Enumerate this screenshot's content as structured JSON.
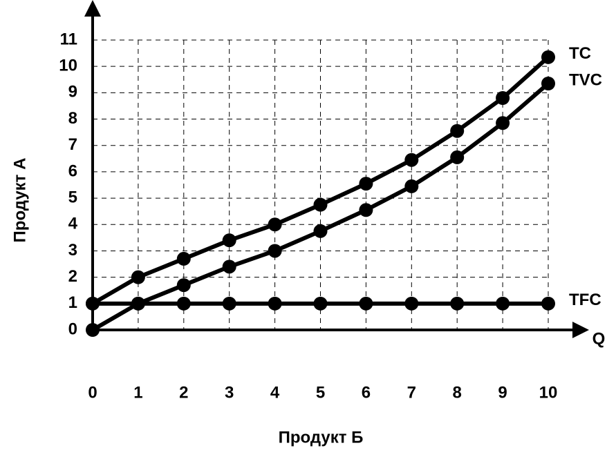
{
  "chart_data": {
    "type": "line",
    "x_label": "Продукт Б",
    "y_label": "Продукт А",
    "x_axis_symbol": "Q",
    "x": [
      0,
      1,
      2,
      3,
      4,
      5,
      6,
      7,
      8,
      9,
      10
    ],
    "series": [
      {
        "name": "TC",
        "color": "#000000",
        "values": [
          1,
          2,
          2.7,
          3.4,
          4,
          4.75,
          5.55,
          6.45,
          7.55,
          8.8,
          10.35
        ]
      },
      {
        "name": "TVC",
        "color": "#000000",
        "values": [
          0,
          1,
          1.7,
          2.4,
          3,
          3.75,
          4.55,
          5.45,
          6.55,
          7.85,
          9.35
        ]
      },
      {
        "name": "TFC",
        "color": "#000000",
        "values": [
          1,
          1,
          1,
          1,
          1,
          1,
          1,
          1,
          1,
          1,
          1
        ]
      }
    ],
    "xlim": [
      0,
      10
    ],
    "ylim": [
      0,
      11
    ],
    "xticks": [
      0,
      1,
      2,
      3,
      4,
      5,
      6,
      7,
      8,
      9,
      10
    ],
    "yticks": [
      0,
      1,
      2,
      3,
      4,
      5,
      6,
      7,
      8,
      9,
      10,
      11
    ],
    "grid": true
  }
}
